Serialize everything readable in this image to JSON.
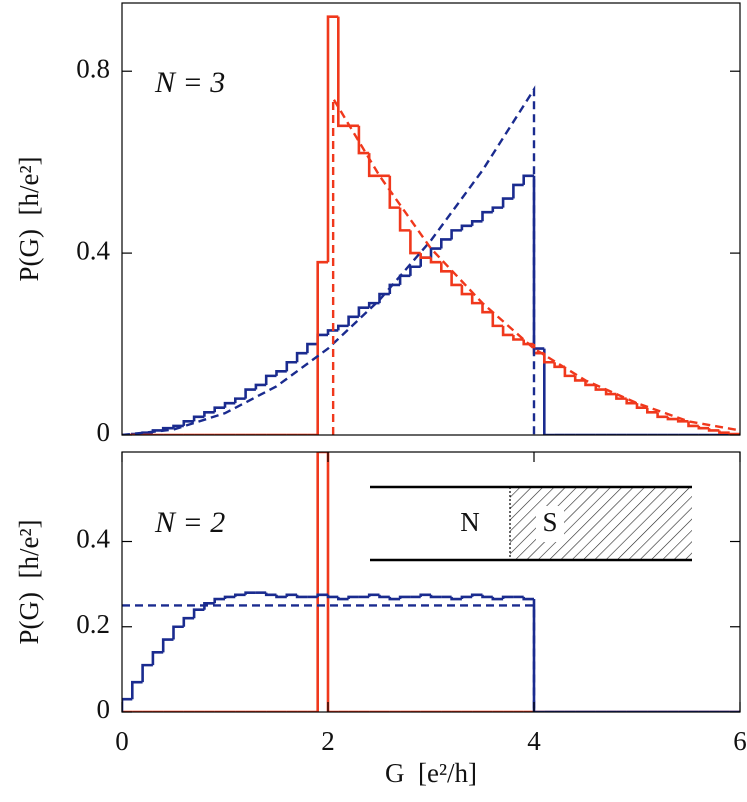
{
  "chart_data": [
    {
      "type": "histogram",
      "annotation": "N = 3",
      "ylabel": "P(G)  [h/e²]",
      "xlim": [
        0,
        6
      ],
      "ylim": [
        0,
        0.95
      ],
      "yticks": [
        0,
        0.4,
        0.8
      ],
      "bins": [
        0,
        0.1,
        0.2,
        0.3,
        0.4,
        0.5,
        0.6,
        0.7,
        0.8,
        0.9,
        1,
        1.1,
        1.2,
        1.3,
        1.4,
        1.5,
        1.6,
        1.7,
        1.8,
        1.9,
        2,
        2.1,
        2.2,
        2.3,
        2.4,
        2.5,
        2.6,
        2.7,
        2.8,
        2.9,
        3,
        3.1,
        3.2,
        3.3,
        3.4,
        3.5,
        3.6,
        3.7,
        3.8,
        3.9,
        4,
        4.1,
        4.2,
        4.3,
        4.4,
        4.5,
        4.6,
        4.7,
        4.8,
        4.9,
        5,
        5.1,
        5.2,
        5.3,
        5.4,
        5.5,
        5.6,
        5.7,
        5.8,
        5.9,
        6
      ],
      "series": [
        {
          "color": "#1a2b8f",
          "values": [
            0,
            0.002,
            0.005,
            0.01,
            0.015,
            0.02,
            0.03,
            0.04,
            0.05,
            0.06,
            0.07,
            0.08,
            0.1,
            0.11,
            0.13,
            0.14,
            0.16,
            0.18,
            0.2,
            0.22,
            0.23,
            0.24,
            0.26,
            0.28,
            0.29,
            0.31,
            0.33,
            0.35,
            0.37,
            0.39,
            0.41,
            0.43,
            0.45,
            0.46,
            0.47,
            0.49,
            0.5,
            0.52,
            0.55,
            0.57,
            0.19,
            0,
            0,
            0,
            0,
            0,
            0,
            0,
            0,
            0,
            0,
            0,
            0,
            0,
            0,
            0,
            0,
            0,
            0,
            0
          ]
        },
        {
          "color": "#f0381c",
          "values": [
            0,
            0,
            0,
            0,
            0,
            0,
            0,
            0,
            0,
            0,
            0,
            0,
            0,
            0,
            0,
            0,
            0,
            0,
            0,
            0.38,
            0.92,
            0.68,
            0.68,
            0.62,
            0.57,
            0.57,
            0.5,
            0.45,
            0.4,
            0.39,
            0.38,
            0.36,
            0.33,
            0.31,
            0.29,
            0.27,
            0.24,
            0.22,
            0.21,
            0.2,
            0.18,
            0.16,
            0.15,
            0.13,
            0.12,
            0.11,
            0.1,
            0.09,
            0.08,
            0.07,
            0.06,
            0.05,
            0.04,
            0.035,
            0.03,
            0.02,
            0.015,
            0.01,
            0.005,
            0.002
          ]
        }
      ],
      "lines": [
        {
          "color": "#1a2b8f",
          "dashed": true,
          "x": [
            0,
            0.5,
            1,
            1.5,
            2,
            2.5,
            3,
            3.5,
            4,
            4
          ],
          "values": [
            0,
            0.012,
            0.048,
            0.107,
            0.19,
            0.297,
            0.428,
            0.582,
            0.76,
            0
          ]
        },
        {
          "color": "#f0381c",
          "dashed": true,
          "x": [
            2.05,
            2.05,
            2.5,
            3,
            3.5,
            4,
            4.5,
            5,
            5.5,
            6
          ],
          "values": [
            0,
            0.74,
            0.57,
            0.41,
            0.29,
            0.19,
            0.12,
            0.07,
            0.03,
            0.01
          ]
        }
      ]
    },
    {
      "type": "histogram",
      "annotation": "N = 2",
      "ylabel": "P(G)  [h/e²]",
      "xlabel": "G  [e²/h]",
      "xlim": [
        0,
        6
      ],
      "ylim": [
        0,
        0.61
      ],
      "xticks": [
        0,
        2,
        4,
        6
      ],
      "yticks": [
        0,
        0.2,
        0.4
      ],
      "inset": {
        "labels": [
          "N",
          "S"
        ]
      },
      "bins": [
        0,
        0.1,
        0.2,
        0.3,
        0.4,
        0.5,
        0.6,
        0.7,
        0.8,
        0.9,
        1,
        1.1,
        1.2,
        1.3,
        1.4,
        1.5,
        1.6,
        1.7,
        1.8,
        1.9,
        2,
        2.1,
        2.2,
        2.3,
        2.4,
        2.5,
        2.6,
        2.7,
        2.8,
        2.9,
        3,
        3.1,
        3.2,
        3.3,
        3.4,
        3.5,
        3.6,
        3.7,
        3.8,
        3.9,
        4,
        4.1,
        4.2,
        4.3,
        4.4,
        4.5,
        4.6,
        4.7,
        4.8,
        4.9,
        5,
        5.1,
        5.2,
        5.3,
        5.4,
        5.5,
        5.6,
        5.7,
        5.8,
        5.9,
        6
      ],
      "series": [
        {
          "color": "#f0381c",
          "values": [
            0,
            0,
            0,
            0,
            0,
            0,
            0,
            0,
            0,
            0,
            0,
            0,
            0,
            0,
            0,
            0,
            0,
            0,
            0,
            0.61,
            0,
            0,
            0,
            0,
            0,
            0,
            0,
            0,
            0,
            0,
            0,
            0,
            0,
            0,
            0,
            0,
            0,
            0,
            0,
            0,
            0,
            0,
            0,
            0,
            0,
            0,
            0,
            0,
            0,
            0,
            0,
            0,
            0,
            0,
            0,
            0,
            0,
            0,
            0,
            0
          ]
        },
        {
          "color": "#1a2b8f",
          "values": [
            0.03,
            0.07,
            0.11,
            0.14,
            0.17,
            0.2,
            0.22,
            0.24,
            0.255,
            0.265,
            0.27,
            0.275,
            0.28,
            0.28,
            0.275,
            0.27,
            0.275,
            0.27,
            0.27,
            0.275,
            0.27,
            0.265,
            0.27,
            0.27,
            0.275,
            0.27,
            0.265,
            0.27,
            0.27,
            0.275,
            0.27,
            0.27,
            0.265,
            0.27,
            0.275,
            0.27,
            0.265,
            0.27,
            0.27,
            0.265,
            0,
            0,
            0,
            0,
            0,
            0,
            0,
            0,
            0,
            0,
            0,
            0,
            0,
            0,
            0,
            0,
            0,
            0,
            0,
            0
          ]
        }
      ],
      "lines": [
        {
          "color": "#1a2b8f",
          "dashed": true,
          "x": [
            0,
            4,
            4
          ],
          "values": [
            0.25,
            0.25,
            0
          ]
        }
      ]
    }
  ]
}
